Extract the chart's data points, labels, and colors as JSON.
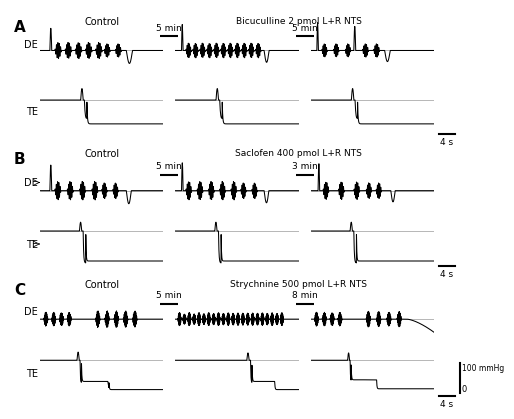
{
  "background_color": "#ffffff",
  "panel_labels": [
    "A",
    "B",
    "C"
  ],
  "panel_titles_right": [
    "Bicuculline 2 pmol L+R NTS",
    "Saclofen 400 pmol L+R NTS",
    "Strychnine 500 pmol L+R NTS"
  ],
  "time_bars_A": [
    "5 min",
    "5 min"
  ],
  "time_bars_B": [
    "5 min",
    "3 min"
  ],
  "time_bars_C": [
    "5 min",
    "8 min"
  ],
  "scale_bar_time": "4 s",
  "scale_bar_pressure": "100 mmHg",
  "scale_bar_zero": "0"
}
